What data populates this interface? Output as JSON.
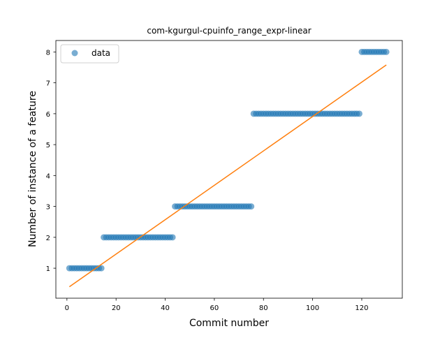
{
  "chart_data": {
    "type": "scatter",
    "title": "com-kgurgul-cpuinfo_range_expr-linear",
    "xlabel": "Commit number",
    "ylabel": "Number of instance of a feature",
    "xlim": [
      -4.5,
      136.5
    ],
    "ylim": [
      0.03,
      8.37
    ],
    "xticks": [
      0,
      20,
      40,
      60,
      80,
      100,
      120
    ],
    "yticks": [
      1,
      2,
      3,
      4,
      5,
      6,
      7,
      8
    ],
    "grid": false,
    "legend": {
      "placement": "top-left",
      "entries": [
        "data"
      ]
    },
    "colors": {
      "data": "#1f77b4",
      "fit": "#ff7f0e"
    },
    "series": [
      {
        "name": "data",
        "kind": "scatter",
        "segments": [
          {
            "x_from": 1,
            "x_to": 14,
            "y": 1
          },
          {
            "x_from": 15,
            "x_to": 43,
            "y": 2
          },
          {
            "x_from": 44,
            "x_to": 75,
            "y": 3
          },
          {
            "x_from": 76,
            "x_to": 119,
            "y": 6
          },
          {
            "x_from": 120,
            "x_to": 130,
            "y": 8
          }
        ]
      },
      {
        "kind": "line",
        "x": [
          1,
          130
        ],
        "y": [
          0.4,
          7.58
        ]
      }
    ]
  }
}
